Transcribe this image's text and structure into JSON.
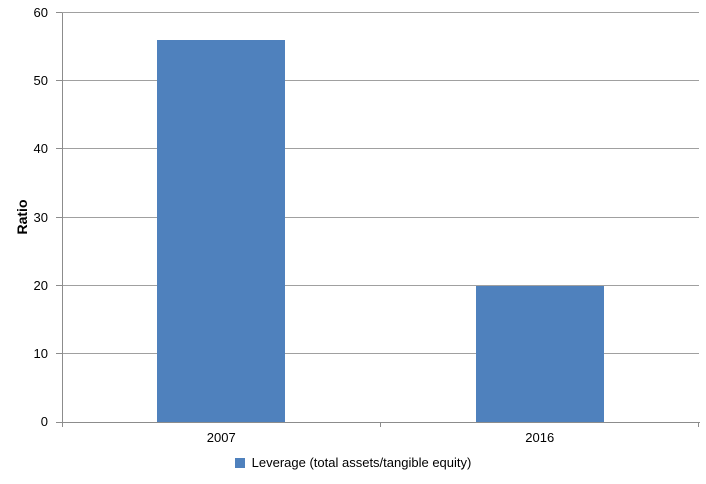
{
  "chart_data": {
    "type": "bar",
    "categories": [
      "2007",
      "2016"
    ],
    "series": [
      {
        "name": "Leverage (total assets/tangible equity)",
        "values": [
          56,
          20
        ]
      }
    ],
    "title": "",
    "xlabel": "",
    "ylabel": "Ratio",
    "ylim": [
      0,
      60
    ],
    "ytick_step": 10,
    "ytick_labels": [
      "0",
      "10",
      "20",
      "30",
      "40",
      "50",
      "60"
    ],
    "grid": true,
    "legend_position": "bottom",
    "bar_color": "#4F81BD",
    "axis_color": "#8C8C8C",
    "gridline_color": "#A0A0A0",
    "text_color": "#000000",
    "background_color": "#FFFFFF"
  }
}
